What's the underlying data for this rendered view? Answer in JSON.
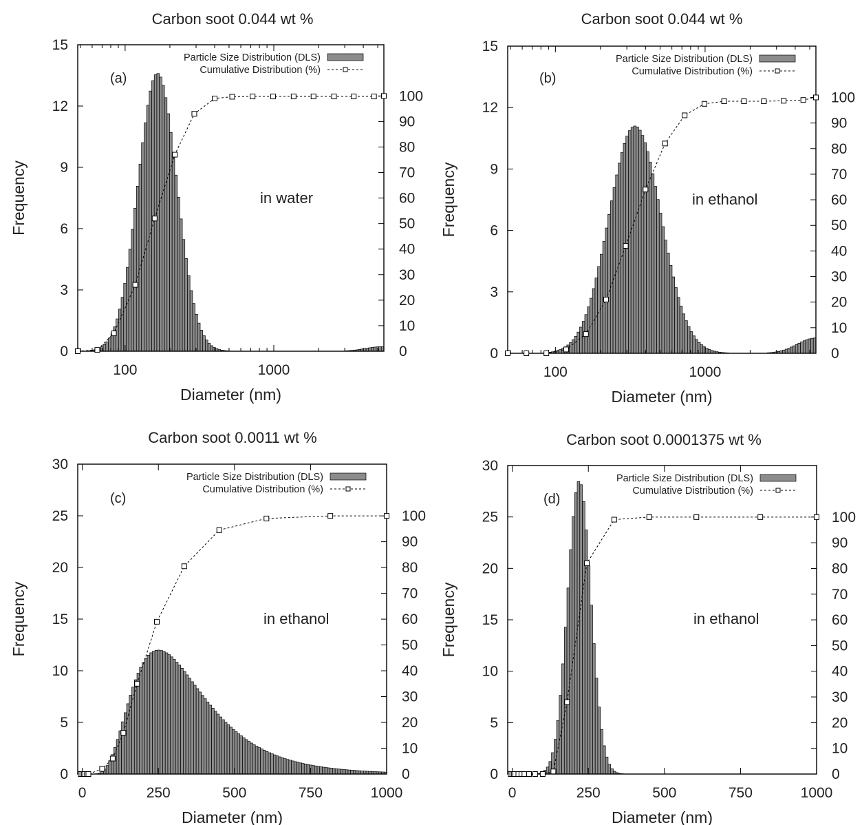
{
  "chart_data": [
    {
      "id": "a",
      "type": "bar",
      "title": "Carbon soot 0.044 wt %",
      "xlabel": "Diameter (nm)",
      "ylabel": "Frequency",
      "xscale": "log",
      "xlim": [
        48,
        5500
      ],
      "ylim": [
        0,
        15
      ],
      "yticks": [
        0,
        3,
        6,
        9,
        12,
        15
      ],
      "xticks": [
        100,
        1000
      ],
      "xtick_labels": [
        "100",
        "1000"
      ],
      "y2lim": [
        0,
        100
      ],
      "y2range_frac": [
        0,
        0.833
      ],
      "y2ticks": [
        0,
        10,
        20,
        30,
        40,
        50,
        60,
        70,
        80,
        90,
        100
      ],
      "panel_letter": "(a)",
      "annotation": "in water",
      "legend": {
        "position": "top-right",
        "entries": [
          "Particle Size Distribution (DLS)",
          "Cumulative Distribution (%)"
        ]
      },
      "peaks": [
        {
          "mu": 165,
          "sigma": 0.3,
          "height": 13.6
        },
        {
          "mu": 5300,
          "sigma": 0.25,
          "height": 0.22
        }
      ],
      "bar_range": [
        60,
        5500
      ],
      "cumulative": {
        "x": [
          48,
          65,
          84,
          117,
          158,
          216,
          292,
          400,
          525,
          720,
          990,
          1360,
          1850,
          2540,
          3450,
          4720,
          5500
        ],
        "y": [
          0,
          0.5,
          7,
          26,
          52,
          77,
          93,
          99,
          99.7,
          99.8,
          99.8,
          99.8,
          99.8,
          99.8,
          99.8,
          99.8,
          100
        ]
      }
    },
    {
      "id": "b",
      "type": "bar",
      "title": "Carbon soot 0.044 wt %",
      "xlabel": "Diameter (nm)",
      "ylabel": "Frequency",
      "xscale": "log",
      "xlim": [
        48,
        5500
      ],
      "ylim": [
        0,
        15
      ],
      "yticks": [
        0,
        3,
        6,
        9,
        12,
        15
      ],
      "xticks": [
        100,
        1000
      ],
      "xtick_labels": [
        "100",
        "1000"
      ],
      "y2lim": [
        0,
        100
      ],
      "y2range_frac": [
        0,
        0.833
      ],
      "y2ticks": [
        0,
        10,
        20,
        30,
        40,
        50,
        60,
        70,
        80,
        90,
        100
      ],
      "panel_letter": "(b)",
      "annotation": "in ethanol",
      "legend": {
        "position": "top-right",
        "entries": [
          "Particle Size Distribution (DLS)",
          "Cumulative Distribution (%)"
        ]
      },
      "peaks": [
        {
          "mu": 340,
          "sigma": 0.4,
          "height": 11.1
        },
        {
          "mu": 5500,
          "sigma": 0.28,
          "height": 0.75
        }
      ],
      "bar_range": [
        95,
        5500
      ],
      "cumulative": {
        "x": [
          48,
          64,
          87,
          118,
          160,
          218,
          295,
          400,
          540,
          730,
          990,
          1340,
          1820,
          2470,
          3350,
          4530,
          5500
        ],
        "y": [
          0,
          0,
          0,
          1.5,
          7.5,
          21,
          42,
          64,
          82,
          93,
          97.5,
          98.5,
          98.5,
          98.5,
          98.7,
          99,
          100
        ]
      }
    },
    {
      "id": "c",
      "type": "bar",
      "title": "Carbon soot 0.0011 wt %",
      "xlabel": "Diameter (nm)",
      "ylabel": "Frequency",
      "xscale": "linear",
      "xlim": [
        -15,
        1000
      ],
      "ylim": [
        0,
        30
      ],
      "yticks": [
        0,
        5,
        10,
        15,
        20,
        25,
        30
      ],
      "xticks": [
        0,
        250,
        500,
        750,
        1000
      ],
      "xtick_labels": [
        "0",
        "250",
        "500",
        "750",
        "1000"
      ],
      "y2lim": [
        0,
        100
      ],
      "y2range_frac": [
        0,
        0.833
      ],
      "y2ticks": [
        0,
        10,
        20,
        30,
        40,
        50,
        60,
        70,
        80,
        90,
        100
      ],
      "panel_letter": "(c)",
      "annotation": "in ethanol",
      "legend": {
        "position": "top-right",
        "entries": [
          "Particle Size Distribution (DLS)",
          "Cumulative Distribution (%)"
        ]
      },
      "peaks": [
        {
          "lognormal": true,
          "mode": 250,
          "sigma": 0.48,
          "height": 12
        }
      ],
      "bar_range": [
        -15,
        1000
      ],
      "cumulative": {
        "x": [
          -5,
          0,
          5,
          10,
          15,
          20,
          65,
          100,
          135,
          180,
          245,
          335,
          450,
          605,
          815,
          1000
        ],
        "y": [
          0,
          0,
          0,
          0,
          0,
          0,
          2,
          6,
          16,
          35,
          59,
          80.5,
          94.5,
          99,
          100,
          100
        ]
      }
    },
    {
      "id": "d",
      "type": "bar",
      "title": "Carbon soot 0.0001375 wt %",
      "xlabel": "Diameter (nm)",
      "ylabel": "Frequency",
      "xscale": "linear",
      "xlim": [
        -15,
        1000
      ],
      "ylim": [
        0,
        30
      ],
      "yticks": [
        0,
        5,
        10,
        15,
        20,
        25,
        30
      ],
      "xticks": [
        0,
        250,
        500,
        750,
        1000
      ],
      "xtick_labels": [
        "0",
        "250",
        "500",
        "750",
        "1000"
      ],
      "y2lim": [
        0,
        100
      ],
      "y2range_frac": [
        0,
        0.833
      ],
      "y2ticks": [
        0,
        10,
        20,
        30,
        40,
        50,
        60,
        70,
        80,
        90,
        100
      ],
      "panel_letter": "(d)",
      "annotation": "in ethanol",
      "legend": {
        "position": "top-right",
        "entries": [
          "Particle Size Distribution (DLS)",
          "Cumulative Distribution (%)"
        ]
      },
      "peaks": [
        {
          "mu": 220,
          "sigma": 38,
          "height": 28.5
        }
      ],
      "bar_range": [
        -15,
        1000
      ],
      "cumulative": {
        "x": [
          -5,
          0,
          5,
          10,
          20,
          30,
          40,
          55,
          75,
          100,
          135,
          180,
          245,
          335,
          450,
          605,
          815,
          1000
        ],
        "y": [
          0,
          0,
          0,
          0,
          0,
          0,
          0,
          0,
          0,
          0,
          1,
          28,
          82,
          99,
          100,
          100,
          100,
          100
        ]
      }
    }
  ]
}
